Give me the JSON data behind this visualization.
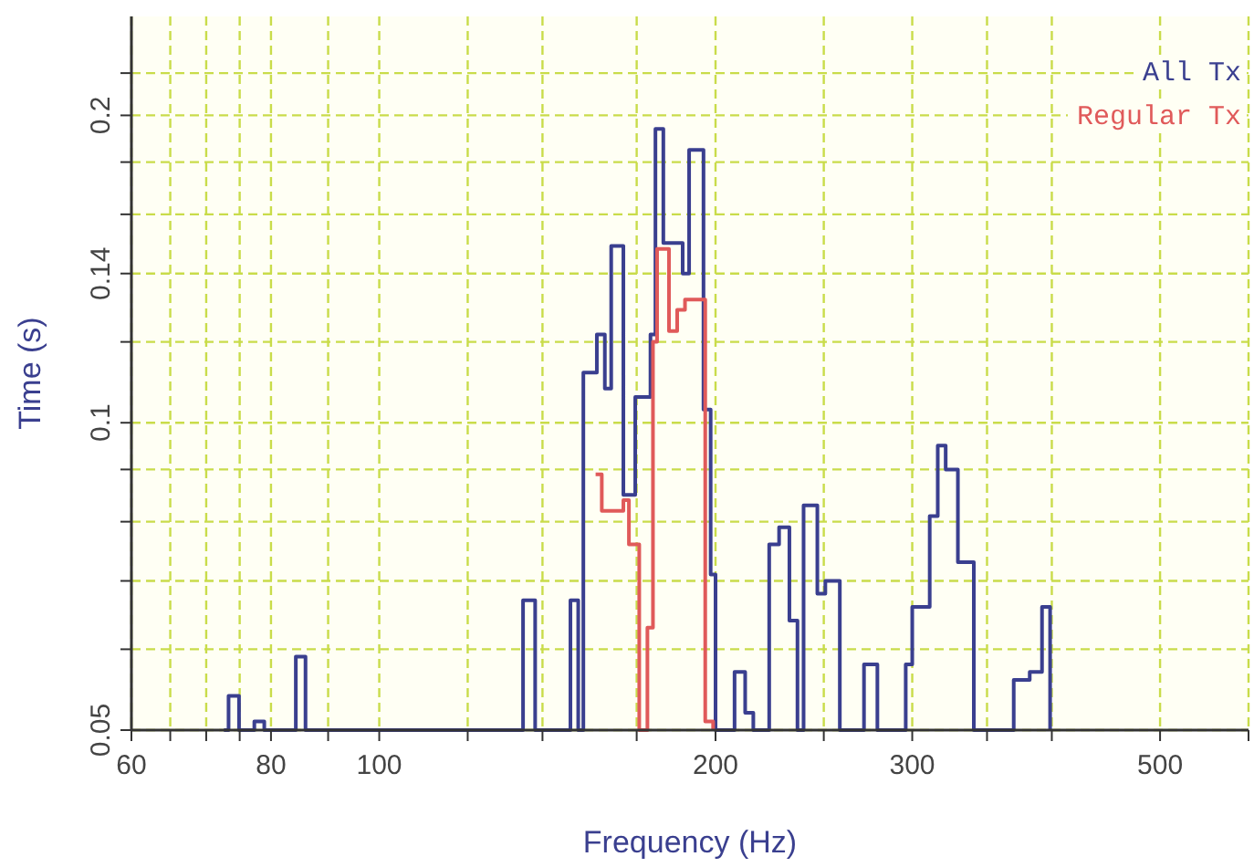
{
  "chart_data": {
    "type": "step",
    "xlabel": "Frequency (Hz)",
    "ylabel": "Time (s)",
    "log": "xy",
    "grid": true,
    "legend": "top right",
    "xlim": [
      60,
      600
    ],
    "ylim": [
      0.05,
      0.25
    ],
    "xticks": [
      60,
      {
        "value": 65,
        "label": null
      },
      {
        "value": 70,
        "label": null
      },
      {
        "value": 75,
        "label": null
      },
      80,
      {
        "value": 90,
        "label": null
      },
      100,
      {
        "value": 120,
        "label": null
      },
      {
        "value": 140,
        "label": null
      },
      {
        "value": 170,
        "label": null
      },
      200,
      {
        "value": 250,
        "label": null
      },
      300,
      {
        "value": 350,
        "label": null
      },
      {
        "value": 400,
        "label": null
      },
      500,
      {
        "value": 600,
        "label": null
      }
    ],
    "yticks": [
      0.05,
      {
        "value": 0.06,
        "label": null
      },
      {
        "value": 0.07,
        "label": null
      },
      {
        "value": 0.08,
        "label": null
      },
      {
        "value": 0.09,
        "label": null
      },
      0.1,
      {
        "value": 0.12,
        "label": null
      },
      0.14,
      {
        "value": 0.16,
        "label": null
      },
      {
        "value": 0.18,
        "label": null
      },
      0.2,
      {
        "value": 0.22,
        "label": null
      }
    ],
    "series": [
      {
        "name": "All Tx",
        "color": "#3a3f8f",
        "x": [
          72.6,
          73.3,
          74.9,
          77.3,
          78.9,
          84.2,
          85.9,
          134.5,
          137.9,
          148.3,
          150.7,
          152.3,
          156.6,
          159.2,
          161.3,
          165.4,
          169.5,
          174.9,
          176.7,
          179.6,
          186.9,
          189.4,
          195.1,
          198.0,
          200,
          208.0,
          212.6,
          216.2,
          223.4,
          228.0,
          232.9,
          236.8,
          239.8,
          246.7,
          250.8,
          258.4,
          271.6,
          279.2,
          296.0,
          300,
          311.0,
          316.2,
          321.4,
          329.6,
          340.6,
          369.8,
          382.2,
          392.0,
          398.6
        ],
        "values": [
          0.05,
          0.054,
          0.05,
          0.051,
          0.05,
          0.059,
          0.05,
          0.067,
          0.05,
          0.067,
          0.05,
          0.112,
          0.122,
          0.108,
          0.149,
          0.085,
          0.106,
          0.122,
          0.194,
          0.15,
          0.14,
          0.185,
          0.103,
          0.071,
          0.05,
          0.057,
          0.052,
          0.05,
          0.076,
          0.079,
          0.064,
          0.05,
          0.083,
          0.068,
          0.07,
          0.05,
          0.058,
          0.05,
          0.058,
          0.066,
          0.081,
          0.095,
          0.09,
          0.073,
          0.05,
          0.056,
          0.057,
          0.066,
          0.05
        ]
      },
      {
        "name": "Regular Tx",
        "color": "#e05a5a",
        "x": [
          156.2,
          158.2,
          165.4,
          167.3,
          170.9,
          173.8,
          175.8,
          177.3,
          181.7,
          184.8,
          187.8,
          195.8,
          199.0
        ],
        "values": [
          0.089,
          0.082,
          0.084,
          0.076,
          0.05,
          0.063,
          0.12,
          0.148,
          0.123,
          0.129,
          0.132,
          0.051,
          0.05
        ]
      }
    ]
  }
}
